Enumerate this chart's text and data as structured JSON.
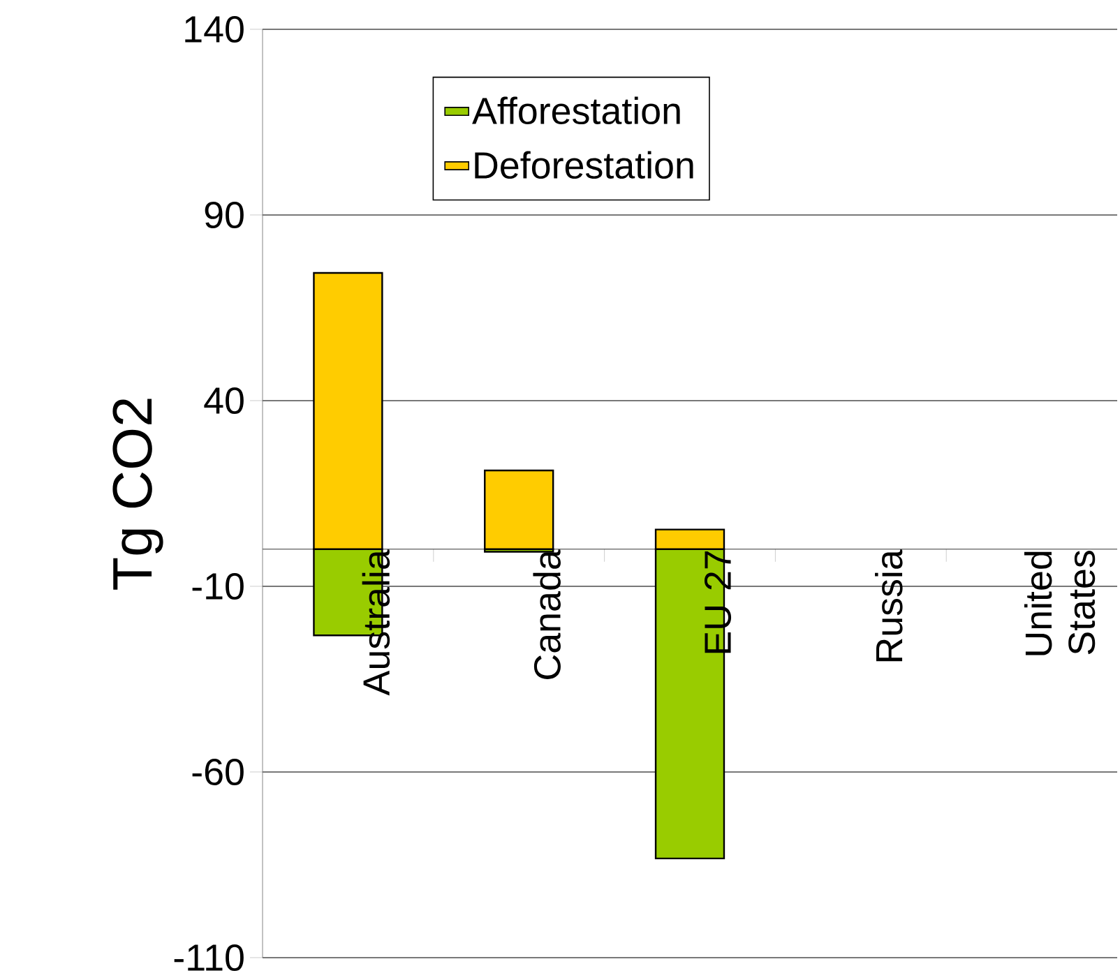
{
  "chart_data": {
    "type": "bar",
    "ylabel": "Tg CO2",
    "categories": [
      "Australia",
      "Canada",
      "EU 27",
      "Russia",
      "United States"
    ],
    "series": [
      {
        "name": "Afforestation",
        "color": "#99cc00",
        "values": [
          -23.2,
          -0.7,
          -83.3,
          null,
          null
        ]
      },
      {
        "name": "Deforestation",
        "color": "#ffcc00",
        "values": [
          74.4,
          21.2,
          5.3,
          null,
          null
        ]
      }
    ],
    "stacked": true,
    "ylim": [
      -110,
      140
    ],
    "yticks": [
      -110,
      -60,
      -10,
      40,
      90,
      140
    ],
    "grid": "y",
    "legend": "top"
  }
}
